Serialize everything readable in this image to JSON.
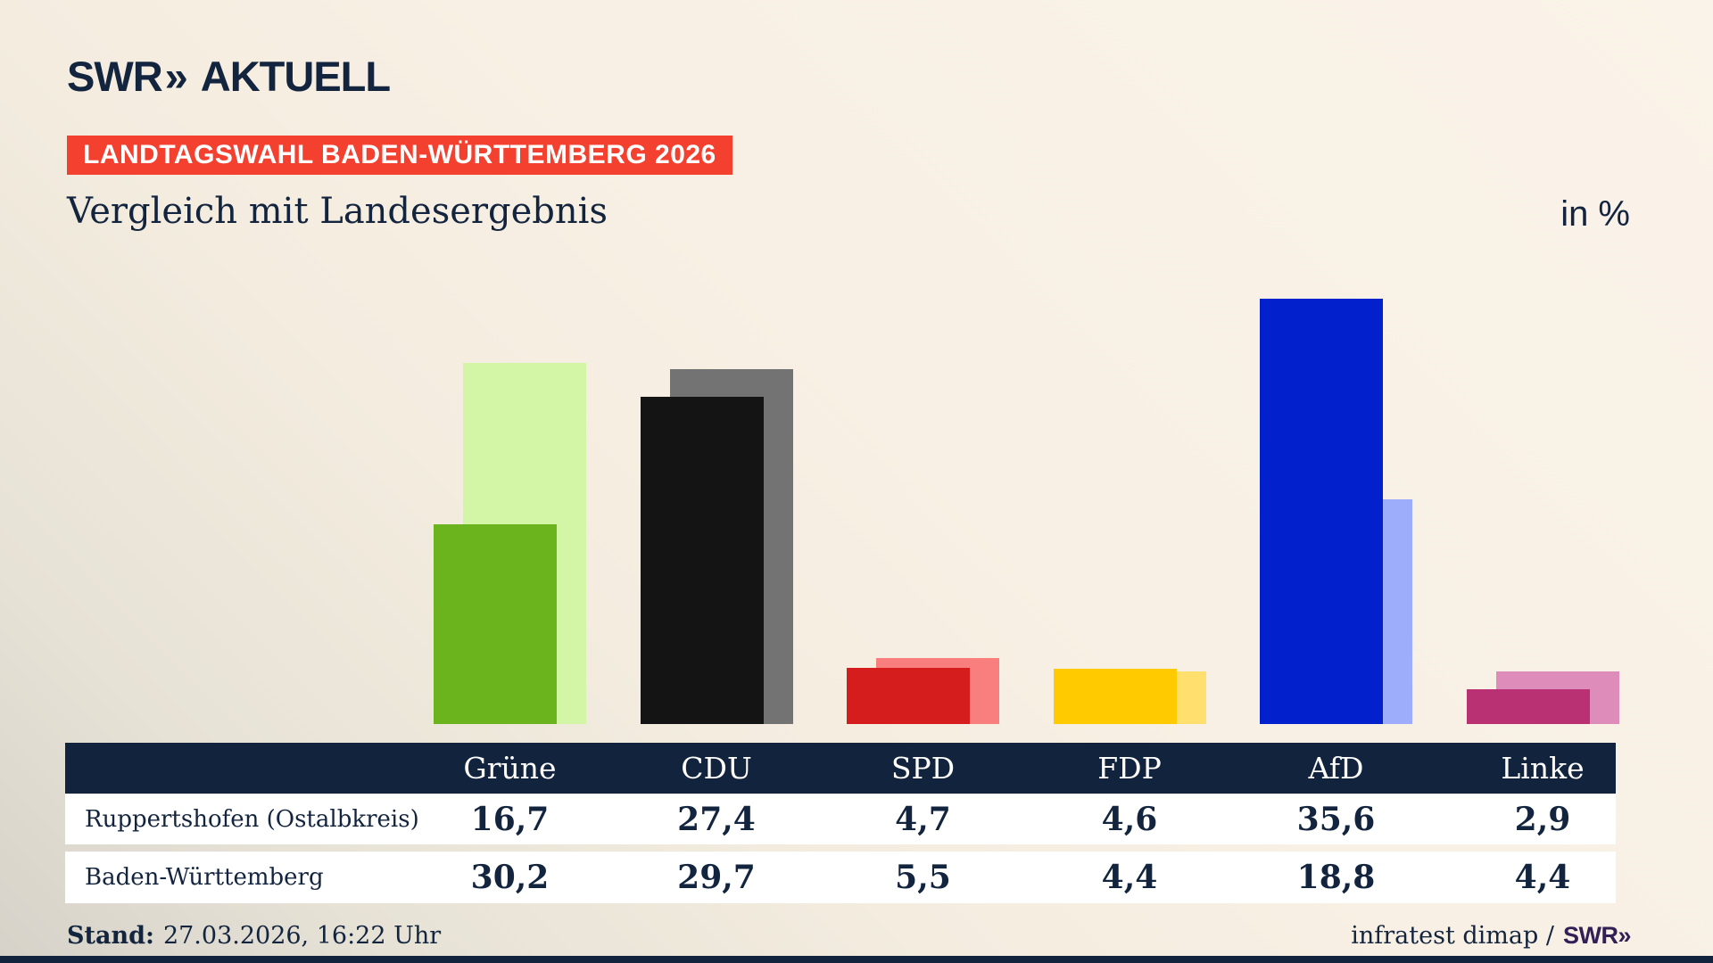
{
  "logo": {
    "brand": "SWR",
    "chevron": "»",
    "section": "AKTUELL"
  },
  "header": {
    "badge": "LANDTAGSWAHL BADEN-WÜRTTEMBERG 2026",
    "title": "Vergleich mit Landesergebnis",
    "unit": "in %"
  },
  "chart_data": {
    "type": "bar",
    "title": "Vergleich mit Landesergebnis",
    "unit": "in %",
    "categories": [
      "Grüne",
      "CDU",
      "SPD",
      "FDP",
      "AfD",
      "Linke"
    ],
    "series": [
      {
        "name": "Ruppertshofen (Ostalbkreis)",
        "role": "front",
        "values": [
          16.7,
          27.4,
          4.7,
          4.6,
          35.6,
          2.9
        ],
        "colors": [
          "#6cb41d",
          "#141414",
          "#d51d1d",
          "#ffca00",
          "#0221cd",
          "#ba3173"
        ]
      },
      {
        "name": "Baden-Württemberg",
        "role": "back",
        "values": [
          30.2,
          29.7,
          5.5,
          4.4,
          18.8,
          4.4
        ],
        "colors": [
          "#d3f6a6",
          "#737373",
          "#f97f7f",
          "#ffe06e",
          "#9dadfb",
          "#de8cb9"
        ]
      }
    ],
    "value_format": "decimal-comma",
    "grid": false,
    "legend_position": "table-below",
    "ylim": [
      0,
      40
    ]
  },
  "footer": {
    "stand_label": "Stand:",
    "stand_value": "27.03.2026, 16:22 Uhr",
    "source_text": "infratest dimap /",
    "source_brand": "SWR»"
  },
  "colors": {
    "background": "#f8f0e4",
    "navy": "#13243e",
    "badge_red": "#f4402f",
    "table_header_navy": "#12233d",
    "row_background": "#ffffff",
    "footer_brand_purple": "#302055"
  }
}
